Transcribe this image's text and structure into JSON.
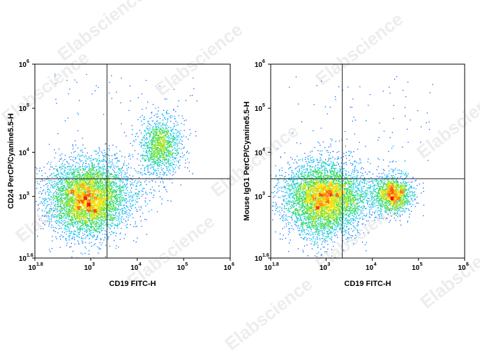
{
  "watermark_text": "Elabscience",
  "colors": {
    "density_low": "#0000ff",
    "density_mid1": "#00d0ff",
    "density_mid2": "#33dd33",
    "density_high1": "#ffee00",
    "density_high2": "#ff0000",
    "gate_line": "#222222",
    "axis": "#000000"
  },
  "chart_data": [
    {
      "type": "scatter",
      "subtype": "flow-cytometry-density-dot-plot",
      "title": "",
      "xlabel": "CD19 FITC-H",
      "ylabel": "CD24 PerCP/Cyanine5.5-H",
      "x_scale": "log10",
      "y_scale": "log10",
      "xlim_log10": [
        1.8,
        6
      ],
      "ylim_log10": [
        1.6,
        6
      ],
      "x_tick_labels": [
        {
          "base": "10",
          "exp": "1.8"
        },
        {
          "base": "10",
          "exp": "3"
        },
        {
          "base": "10",
          "exp": "4"
        },
        {
          "base": "10",
          "exp": "5"
        },
        {
          "base": "10",
          "exp": "6"
        }
      ],
      "x_tick_exps": [
        1.8,
        3,
        4,
        5,
        6
      ],
      "y_tick_labels": [
        {
          "base": "10",
          "exp": "1.6"
        },
        {
          "base": "10",
          "exp": "3"
        },
        {
          "base": "10",
          "exp": "4"
        },
        {
          "base": "10",
          "exp": "5"
        },
        {
          "base": "10",
          "exp": "6"
        }
      ],
      "y_tick_exps": [
        1.6,
        3,
        4,
        5,
        6
      ],
      "gate_x_log10": 3.35,
      "gate_y_log10": 3.4,
      "populations": [
        {
          "center_log10": [
            2.95,
            2.95
          ],
          "spread_log10": [
            0.42,
            0.42
          ],
          "n": 5200
        },
        {
          "center_log10": [
            4.5,
            4.15
          ],
          "spread_log10": [
            0.22,
            0.32
          ],
          "n": 1300
        },
        {
          "center_log10": [
            4.0,
            3.1
          ],
          "spread_log10": [
            0.3,
            0.25
          ],
          "n": 120
        }
      ]
    },
    {
      "type": "scatter",
      "subtype": "flow-cytometry-density-dot-plot",
      "title": "",
      "xlabel": "CD19 FITC-H",
      "ylabel": "Mouse IgG1 PerCP/Cyanine5.5-H",
      "x_scale": "log10",
      "y_scale": "log10",
      "xlim_log10": [
        1.8,
        6
      ],
      "ylim_log10": [
        1.6,
        6
      ],
      "x_tick_labels": [
        {
          "base": "10",
          "exp": "1.8"
        },
        {
          "base": "10",
          "exp": "3"
        },
        {
          "base": "10",
          "exp": "4"
        },
        {
          "base": "10",
          "exp": "5"
        },
        {
          "base": "10",
          "exp": "6"
        }
      ],
      "x_tick_exps": [
        1.8,
        3,
        4,
        5,
        6
      ],
      "y_tick_labels": [
        {
          "base": "10",
          "exp": "1.6"
        },
        {
          "base": "10",
          "exp": "3"
        },
        {
          "base": "10",
          "exp": "4"
        },
        {
          "base": "10",
          "exp": "5"
        },
        {
          "base": "10",
          "exp": "6"
        }
      ],
      "y_tick_exps": [
        1.6,
        3,
        4,
        5,
        6
      ],
      "gate_x_log10": 3.35,
      "gate_y_log10": 3.4,
      "populations": [
        {
          "center_log10": [
            2.95,
            2.95
          ],
          "spread_log10": [
            0.42,
            0.42
          ],
          "n": 5200
        },
        {
          "center_log10": [
            4.45,
            3.05
          ],
          "spread_log10": [
            0.2,
            0.22
          ],
          "n": 1500
        },
        {
          "center_log10": [
            3.9,
            3.0
          ],
          "spread_log10": [
            0.3,
            0.22
          ],
          "n": 200
        }
      ]
    }
  ]
}
